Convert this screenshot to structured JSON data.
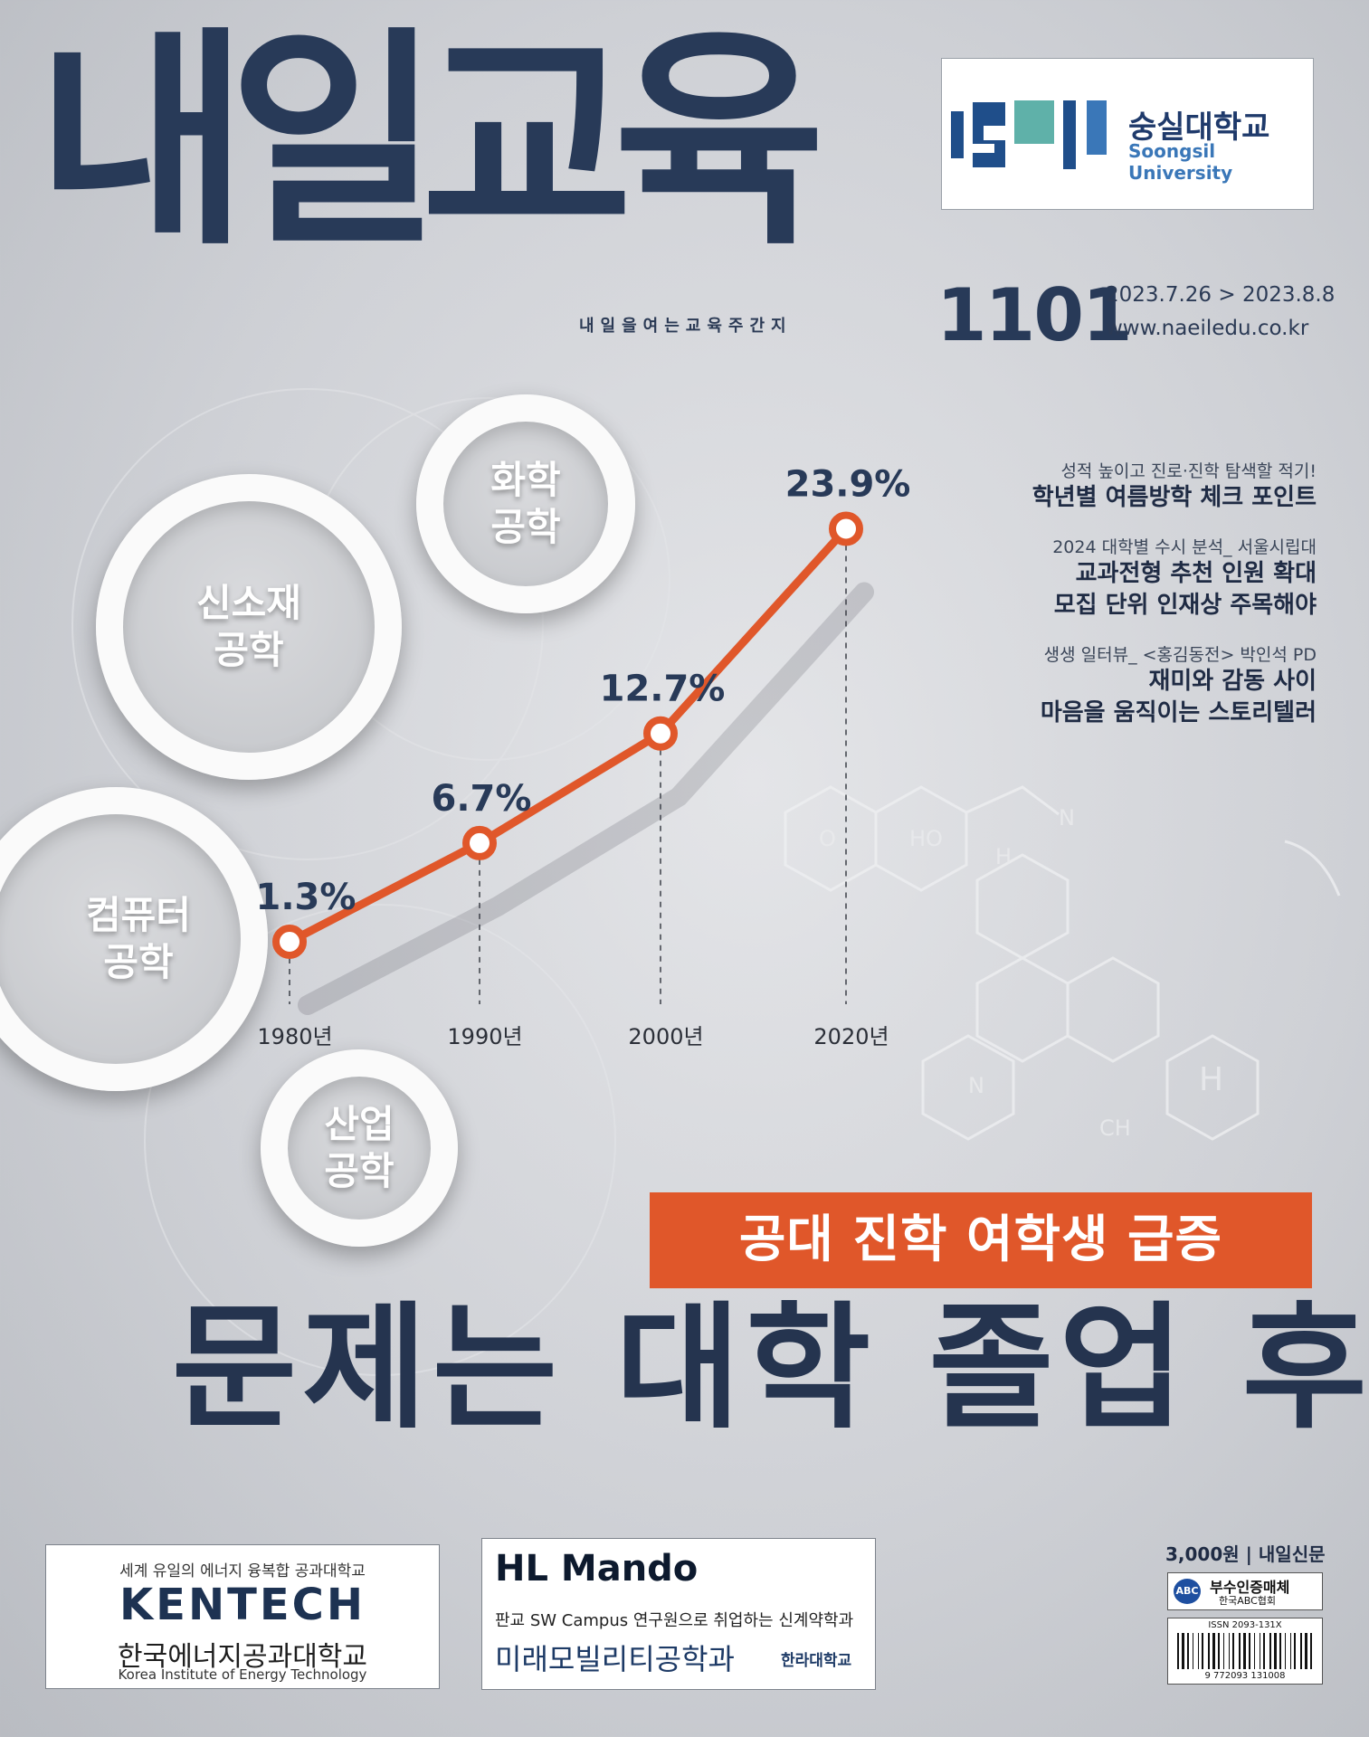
{
  "masthead": {
    "title": "내일교육",
    "tagline": "내일을여는교육주간지",
    "issue_number": "1101",
    "date_range": "2023.7.26 > 2023.8.8",
    "url": "www.naeiledu.co.kr"
  },
  "sponsor_logo": {
    "name_ko": "숭실대학교",
    "name_en": "Soongsil University"
  },
  "headlines": [
    {
      "sub": "성적 높이고 진로·진학 탐색할 적기!",
      "main": [
        "학년별 여름방학 체크 포인트"
      ]
    },
    {
      "sub": "2024 대학별 수시 분석_ 서울시립대",
      "main": [
        "교과전형 추천 인원 확대",
        "모집 단위 인재상 주목해야"
      ]
    },
    {
      "sub": "생생 일터뷰_ <홍김동전> 박인석 PD",
      "main": [
        "재미와 감동 사이",
        "마음을 움직이는 스토리텔러"
      ]
    }
  ],
  "circles": [
    {
      "label": "화학\n공학"
    },
    {
      "label": "신소재\n공학"
    },
    {
      "label": "컴퓨터\n공학"
    },
    {
      "label": "산업\n공학"
    }
  ],
  "chart_data": {
    "type": "line",
    "categories": [
      "1980년",
      "1990년",
      "2000년",
      "2020년"
    ],
    "series": [
      {
        "values": [
          1.3,
          6.7,
          12.7,
          23.9
        ]
      }
    ],
    "data_labels": [
      "1.3%",
      "6.7%",
      "12.7%",
      "23.9%"
    ],
    "line_color": "#e0572a"
  },
  "cover_story": {
    "banner": "공대 진학 여학생 급증",
    "title": "문제는 대학 졸업 후"
  },
  "ads": {
    "kentech": {
      "sub": "세계 유일의 에너지 융복합 공과대학교",
      "logo": "KENTECH",
      "name_ko": "한국에너지공과대학교",
      "name_en": "Korea Institute of Energy Technology"
    },
    "mando": {
      "logo": "HL Mando",
      "sub": "판교 SW Campus 연구원으로 취업하는 신계약학과",
      "dept": "미래모빌리티공학과",
      "university": "한라대학교"
    }
  },
  "price_info": {
    "price": "3,000원 | 내일신문",
    "abc_icon": "ABC",
    "abc_title": "부수인증매체",
    "abc_sub": "한국ABC협회",
    "issn": "ISSN 2093-131X",
    "barcode_digits": "9 772093 131008"
  },
  "colors": {
    "accent": "#e0572a",
    "navy": "#283a58"
  }
}
